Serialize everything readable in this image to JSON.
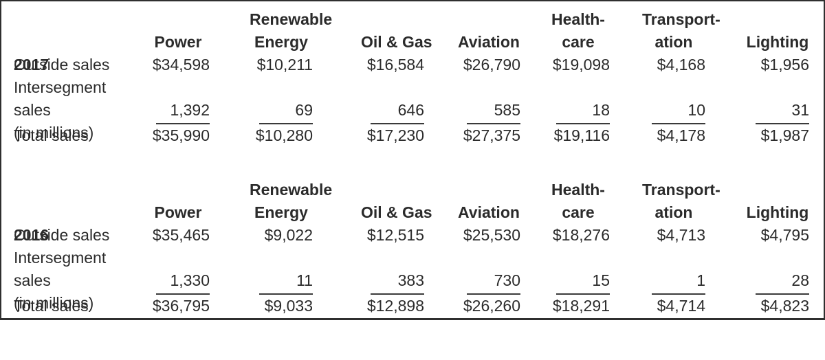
{
  "colors": {
    "text": "#2b2b2b",
    "border": "#2f2f2f",
    "rule": "#3a3a3a",
    "background": "#ffffff"
  },
  "sections": [
    {
      "year": "2017",
      "unit_label": "(in millions)",
      "columns": [
        "Power",
        "Renewable\nEnergy",
        "Oil & Gas",
        "Aviation",
        "Health-\ncare",
        "Transport-\nation",
        "Lighting"
      ],
      "rows": [
        {
          "label": "Outside sales",
          "values": [
            "$34,598",
            "$10,211",
            "$16,584",
            "$26,790",
            "$19,098",
            "$4,168",
            "$1,956"
          ]
        },
        {
          "label": "Intersegment\nsales",
          "values": [
            "1,392",
            "69",
            "646",
            "585",
            "18",
            "10",
            "31"
          ]
        },
        {
          "label": "Total sales",
          "values": [
            "$35,990",
            "$10,280",
            "$17,230",
            "$27,375",
            "$19,116",
            "$4,178",
            "$1,987"
          ]
        }
      ]
    },
    {
      "year": "2016",
      "unit_label": "(in millions)",
      "columns": [
        "Power",
        "Renewable\nEnergy",
        "Oil & Gas",
        "Aviation",
        "Health-\ncare",
        "Transport-\nation",
        "Lighting"
      ],
      "rows": [
        {
          "label": "Outside sales",
          "values": [
            "$35,465",
            "$9,022",
            "$12,515",
            "$25,530",
            "$18,276",
            "$4,713",
            "$4,795"
          ]
        },
        {
          "label": "Intersegment\nsales",
          "values": [
            "1,330",
            "11",
            "383",
            "730",
            "15",
            "1",
            "28"
          ]
        },
        {
          "label": "Total sales",
          "values": [
            "$36,795",
            "$9,033",
            "$12,898",
            "$26,260",
            "$18,291",
            "$4,714",
            "$4,823"
          ]
        }
      ]
    }
  ]
}
